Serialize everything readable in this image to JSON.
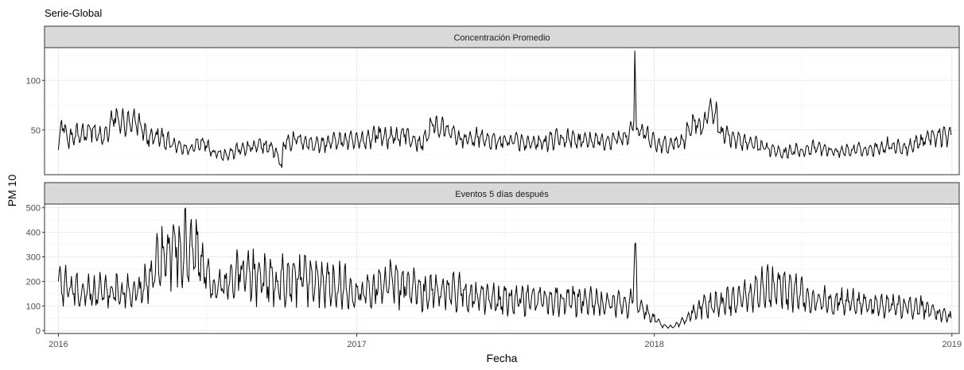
{
  "chart_data": {
    "type": "line",
    "title": "Serie-Global",
    "xlabel": "Fecha",
    "ylabel": "PM 10",
    "xlim": [
      "2015-12-15",
      "2019-01-10"
    ],
    "x_ticks": [
      "2016",
      "2017",
      "2018",
      "2019"
    ],
    "grid": true,
    "panels": [
      {
        "strip": "Concentración Promedio",
        "ylim": [
          5,
          133
        ],
        "y_ticks": [
          50,
          100
        ],
        "series": [
          {
            "points": [
              [
                "2016-01-01",
                30
              ],
              [
                "2016-01-05",
                60
              ],
              [
                "2016-01-12",
                40
              ],
              [
                "2016-01-25",
                45
              ],
              [
                "2016-02-10",
                50
              ],
              [
                "2016-02-25",
                40
              ],
              [
                "2016-03-10",
                62
              ],
              [
                "2016-03-25",
                55
              ],
              [
                "2016-04-10",
                58
              ],
              [
                "2016-04-20",
                40
              ],
              [
                "2016-05-01",
                45
              ],
              [
                "2016-05-20",
                35
              ],
              [
                "2016-06-10",
                30
              ],
              [
                "2016-06-25",
                40
              ],
              [
                "2016-07-10",
                28
              ],
              [
                "2016-07-25",
                25
              ],
              [
                "2016-08-10",
                30
              ],
              [
                "2016-08-25",
                32
              ],
              [
                "2016-09-10",
                35
              ],
              [
                "2016-09-25",
                28
              ],
              [
                "2016-10-01",
                12
              ],
              [
                "2016-10-03",
                38
              ],
              [
                "2016-10-20",
                40
              ],
              [
                "2016-11-15",
                35
              ],
              [
                "2016-12-10",
                40
              ],
              [
                "2017-01-05",
                38
              ],
              [
                "2017-01-25",
                45
              ],
              [
                "2017-02-10",
                42
              ],
              [
                "2017-03-01",
                45
              ],
              [
                "2017-03-20",
                35
              ],
              [
                "2017-04-05",
                55
              ],
              [
                "2017-04-20",
                50
              ],
              [
                "2017-05-10",
                40
              ],
              [
                "2017-06-01",
                42
              ],
              [
                "2017-06-20",
                38
              ],
              [
                "2017-07-10",
                40
              ],
              [
                "2017-08-01",
                35
              ],
              [
                "2017-08-20",
                38
              ],
              [
                "2017-09-10",
                42
              ],
              [
                "2017-10-01",
                40
              ],
              [
                "2017-10-25",
                38
              ],
              [
                "2017-11-15",
                40
              ],
              [
                "2017-12-01",
                45
              ],
              [
                "2017-12-07",
                60
              ],
              [
                "2017-12-08",
                130
              ],
              [
                "2017-12-10",
                50
              ],
              [
                "2017-12-20",
                45
              ],
              [
                "2018-01-05",
                35
              ],
              [
                "2018-01-20",
                35
              ],
              [
                "2018-02-05",
                40
              ],
              [
                "2018-02-20",
                60
              ],
              [
                "2018-03-01",
                50
              ],
              [
                "2018-03-12",
                75
              ],
              [
                "2018-03-25",
                48
              ],
              [
                "2018-04-10",
                40
              ],
              [
                "2018-05-01",
                35
              ],
              [
                "2018-05-20",
                32
              ],
              [
                "2018-06-10",
                28
              ],
              [
                "2018-07-01",
                30
              ],
              [
                "2018-07-20",
                32
              ],
              [
                "2018-08-10",
                28
              ],
              [
                "2018-09-01",
                30
              ],
              [
                "2018-09-25",
                30
              ],
              [
                "2018-10-15",
                35
              ],
              [
                "2018-11-05",
                32
              ],
              [
                "2018-11-25",
                40
              ],
              [
                "2018-12-10",
                45
              ],
              [
                "2018-12-31",
                45
              ]
            ]
          }
        ]
      },
      {
        "strip": "Eventos 5 días después",
        "ylim": [
          -12,
          515
        ],
        "y_ticks": [
          0,
          100,
          200,
          300,
          400,
          500
        ],
        "series": [
          {
            "points": [
              [
                "2016-01-01",
                200
              ],
              [
                "2016-01-20",
                150
              ],
              [
                "2016-02-10",
                150
              ],
              [
                "2016-03-01",
                160
              ],
              [
                "2016-03-20",
                150
              ],
              [
                "2016-04-10",
                170
              ],
              [
                "2016-04-25",
                220
              ],
              [
                "2016-05-10",
                300
              ],
              [
                "2016-05-25",
                340
              ],
              [
                "2016-06-10",
                330
              ],
              [
                "2016-06-25",
                300
              ],
              [
                "2016-07-05",
                180
              ],
              [
                "2016-07-20",
                170
              ],
              [
                "2016-08-10",
                230
              ],
              [
                "2016-09-01",
                220
              ],
              [
                "2016-09-25",
                200
              ],
              [
                "2016-10-20",
                210
              ],
              [
                "2016-11-15",
                200
              ],
              [
                "2016-12-10",
                190
              ],
              [
                "2017-01-05",
                150
              ],
              [
                "2017-01-25",
                170
              ],
              [
                "2017-02-10",
                200
              ],
              [
                "2017-03-01",
                180
              ],
              [
                "2017-03-25",
                160
              ],
              [
                "2017-04-15",
                170
              ],
              [
                "2017-05-10",
                150
              ],
              [
                "2017-06-01",
                130
              ],
              [
                "2017-06-25",
                125
              ],
              [
                "2017-07-20",
                130
              ],
              [
                "2017-08-15",
                130
              ],
              [
                "2017-09-10",
                130
              ],
              [
                "2017-10-05",
                120
              ],
              [
                "2017-10-30",
                110
              ],
              [
                "2017-11-20",
                110
              ],
              [
                "2017-12-05",
                110
              ],
              [
                "2017-12-08",
                350
              ],
              [
                "2017-12-11",
                100
              ],
              [
                "2017-12-25",
                70
              ],
              [
                "2018-01-10",
                20
              ],
              [
                "2018-01-25",
                15
              ],
              [
                "2018-02-10",
                50
              ],
              [
                "2018-03-01",
                100
              ],
              [
                "2018-03-25",
                110
              ],
              [
                "2018-04-20",
                130
              ],
              [
                "2018-05-15",
                170
              ],
              [
                "2018-06-05",
                180
              ],
              [
                "2018-06-25",
                150
              ],
              [
                "2018-07-20",
                120
              ],
              [
                "2018-08-15",
                115
              ],
              [
                "2018-09-10",
                110
              ],
              [
                "2018-10-05",
                100
              ],
              [
                "2018-10-30",
                95
              ],
              [
                "2018-11-25",
                100
              ],
              [
                "2018-12-15",
                70
              ],
              [
                "2018-12-31",
                50
              ]
            ]
          }
        ]
      }
    ]
  }
}
